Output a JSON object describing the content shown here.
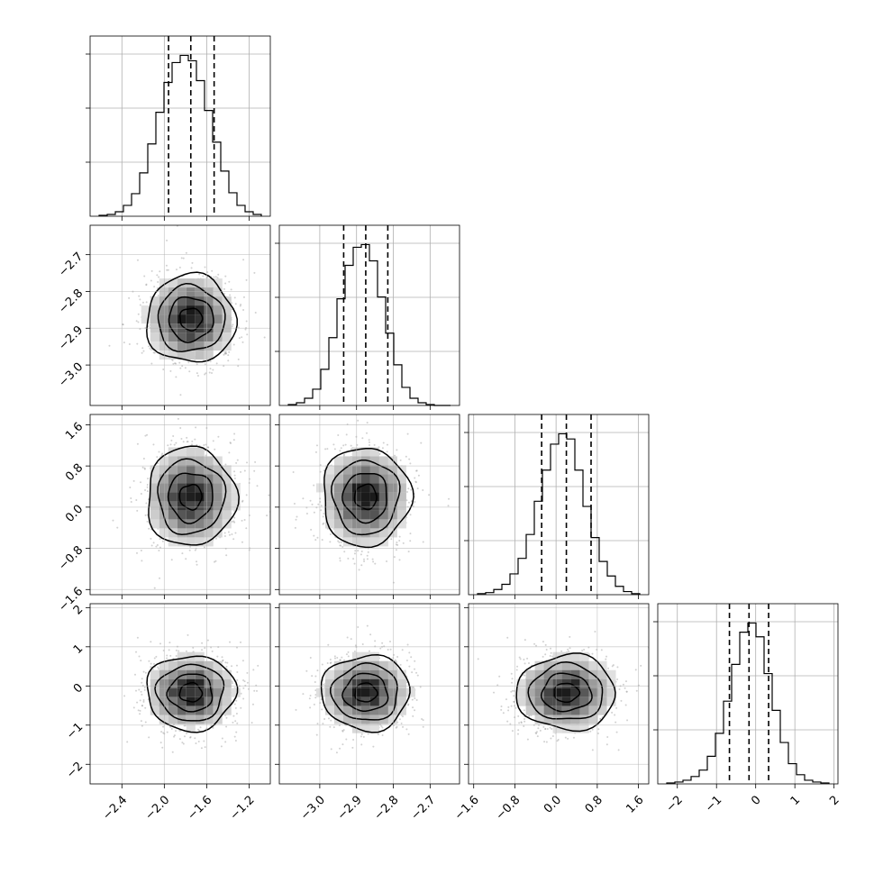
{
  "chart_data": {
    "type": "corner",
    "grid": true,
    "parameters": [
      {
        "mean": -1.75,
        "sd": 0.21,
        "range": [
          -2.7,
          -1.0
        ],
        "ticks": [
          -2.4,
          -2.0,
          -1.6,
          -1.2
        ],
        "tick_labels": [
          "−2.4",
          "−2.0",
          "−1.6",
          "−1.2"
        ],
        "quantiles": [
          -1.96,
          -1.75,
          -1.53
        ]
      },
      {
        "mean": -2.875,
        "sd": 0.06,
        "range": [
          -3.11,
          -2.62
        ],
        "ticks": [
          -3.0,
          -2.9,
          -2.8,
          -2.7
        ],
        "tick_labels": [
          "−3.0",
          "−2.9",
          "−2.8",
          "−2.7"
        ],
        "quantiles": [
          -2.935,
          -2.875,
          -2.815
        ]
      },
      {
        "mean": 0.2,
        "sd": 0.48,
        "range": [
          -1.7,
          1.8
        ],
        "ticks": [
          -1.6,
          -0.8,
          0.0,
          0.8,
          1.6
        ],
        "tick_labels": [
          "−1.6",
          "−0.8",
          "0.0",
          "0.8",
          "1.6"
        ],
        "quantiles": [
          -0.28,
          0.2,
          0.68
        ]
      },
      {
        "mean": -0.17,
        "sd": 0.48,
        "range": [
          -2.5,
          2.1
        ],
        "ticks": [
          -2,
          -1,
          0,
          1,
          2
        ],
        "tick_labels": [
          "−2",
          "−1",
          "0",
          "1",
          "2"
        ],
        "quantiles": [
          -0.67,
          -0.17,
          0.33
        ]
      }
    ],
    "histograms": [
      {
        "parameter": 0,
        "counts": [
          1,
          2,
          5,
          12,
          25,
          48,
          80,
          115,
          148,
          170,
          178,
          172,
          150,
          117,
          82,
          50,
          26,
          12,
          5,
          2
        ]
      },
      {
        "parameter": 1,
        "counts": [
          1,
          3,
          8,
          18,
          40,
          75,
          118,
          155,
          175,
          178,
          160,
          120,
          80,
          45,
          20,
          8,
          3,
          1,
          0,
          0
        ]
      },
      {
        "parameter": 2,
        "counts": [
          1,
          2,
          5,
          10,
          20,
          35,
          58,
          90,
          120,
          145,
          155,
          150,
          120,
          85,
          55,
          32,
          18,
          8,
          3,
          1
        ]
      },
      {
        "parameter": 3,
        "counts": [
          1,
          2,
          4,
          8,
          15,
          30,
          55,
          90,
          130,
          165,
          175,
          160,
          120,
          80,
          45,
          22,
          10,
          4,
          2,
          1
        ]
      }
    ],
    "scatter_panels": [
      {
        "x_param": 0,
        "y_param": 1,
        "center": [
          -1.75,
          -2.875
        ],
        "contour_levels": 4
      },
      {
        "x_param": 0,
        "y_param": 2,
        "center": [
          -1.75,
          0.2
        ],
        "contour_levels": 4
      },
      {
        "x_param": 1,
        "y_param": 2,
        "center": [
          -2.875,
          0.2
        ],
        "contour_levels": 4
      },
      {
        "x_param": 0,
        "y_param": 3,
        "center": [
          -1.75,
          -0.17
        ],
        "contour_levels": 4
      },
      {
        "x_param": 1,
        "y_param": 3,
        "center": [
          -2.875,
          -0.17
        ],
        "contour_levels": 4
      },
      {
        "x_param": 2,
        "y_param": 3,
        "center": [
          0.2,
          -0.17
        ],
        "contour_levels": 4
      }
    ],
    "colors": {
      "line": "#000000",
      "grid": "#b0b0b0",
      "points": "#9a9a9a",
      "density_dark": "#1a1a1a"
    }
  }
}
